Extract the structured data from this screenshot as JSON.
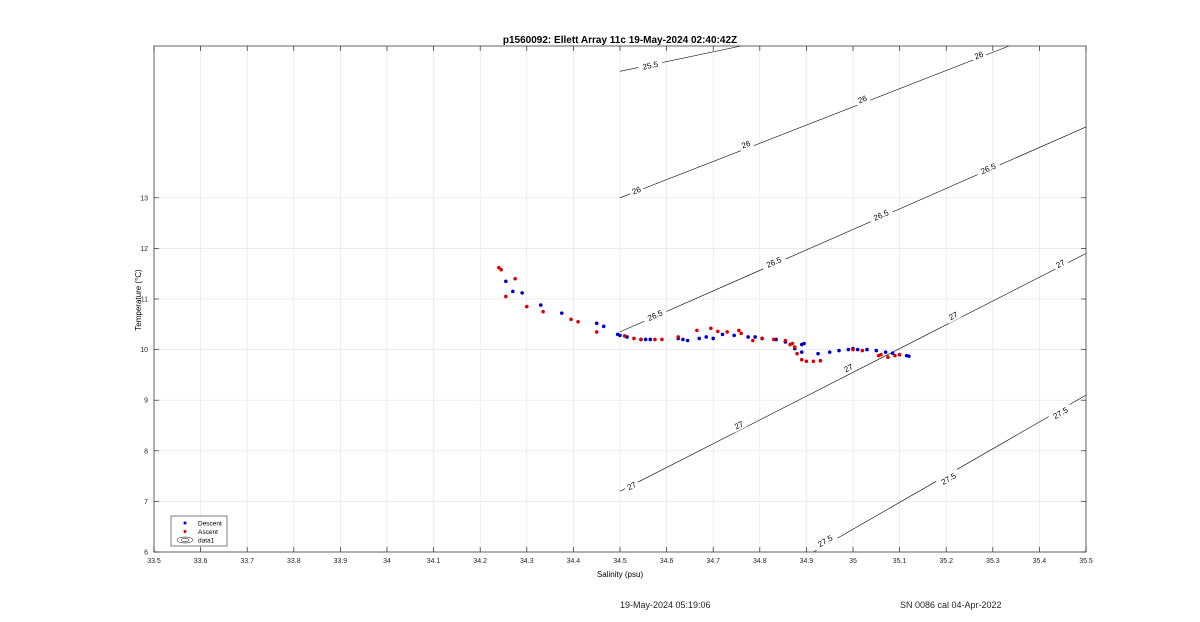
{
  "chart_data": {
    "type": "scatter",
    "title": "p1560092: Ellett Array 11c 19-May-2024 02:40:42Z",
    "xlabel": "Salinity (psu)",
    "ylabel": "Temperature (°C)",
    "xlim": [
      33.5,
      35.5
    ],
    "ylim": [
      6,
      16
    ],
    "xticks": [
      33.5,
      33.6,
      33.7,
      33.8,
      33.9,
      34,
      34.1,
      34.2,
      34.3,
      34.4,
      34.5,
      34.6,
      34.7,
      34.8,
      34.9,
      35,
      35.1,
      35.2,
      35.3,
      35.4,
      35.5
    ],
    "yticks": [
      6,
      7,
      8,
      9,
      10,
      11,
      12,
      13
    ],
    "grid": true,
    "legend_position": "bottom-left",
    "colors": {
      "descent": "#0000cc",
      "ascent": "#dd0000",
      "contour": "#000000",
      "grid": "#e6e6e6"
    },
    "series": [
      {
        "name": "Descent",
        "marker": "dot",
        "points": [
          [
            34.255,
            11.35
          ],
          [
            34.27,
            11.15
          ],
          [
            34.29,
            11.12
          ],
          [
            34.33,
            10.88
          ],
          [
            34.375,
            10.72
          ],
          [
            34.45,
            10.52
          ],
          [
            34.465,
            10.46
          ],
          [
            34.495,
            10.3
          ],
          [
            34.5,
            10.28
          ],
          [
            34.515,
            10.25
          ],
          [
            34.545,
            10.2
          ],
          [
            34.555,
            10.2
          ],
          [
            34.565,
            10.2
          ],
          [
            34.625,
            10.22
          ],
          [
            34.635,
            10.2
          ],
          [
            34.645,
            10.18
          ],
          [
            34.67,
            10.22
          ],
          [
            34.685,
            10.25
          ],
          [
            34.7,
            10.22
          ],
          [
            34.72,
            10.3
          ],
          [
            34.745,
            10.28
          ],
          [
            34.775,
            10.25
          ],
          [
            34.79,
            10.25
          ],
          [
            34.805,
            10.22
          ],
          [
            34.835,
            10.2
          ],
          [
            34.855,
            10.15
          ],
          [
            34.875,
            10.02
          ],
          [
            34.89,
            9.95
          ],
          [
            34.89,
            10.1
          ],
          [
            34.895,
            10.12
          ],
          [
            34.925,
            9.92
          ],
          [
            34.95,
            9.95
          ],
          [
            34.97,
            9.98
          ],
          [
            34.99,
            10.0
          ],
          [
            35.0,
            10.02
          ],
          [
            35.01,
            10.0
          ],
          [
            35.03,
            10.0
          ],
          [
            35.05,
            9.98
          ],
          [
            35.07,
            9.95
          ],
          [
            35.085,
            9.93
          ],
          [
            35.1,
            9.9
          ],
          [
            35.115,
            9.88
          ],
          [
            35.12,
            9.87
          ]
        ]
      },
      {
        "name": "Ascent",
        "marker": "dot",
        "points": [
          [
            34.24,
            11.62
          ],
          [
            34.245,
            11.58
          ],
          [
            34.275,
            11.4
          ],
          [
            34.255,
            11.05
          ],
          [
            34.3,
            10.85
          ],
          [
            34.335,
            10.75
          ],
          [
            34.395,
            10.6
          ],
          [
            34.41,
            10.55
          ],
          [
            34.45,
            10.35
          ],
          [
            34.51,
            10.27
          ],
          [
            34.53,
            10.22
          ],
          [
            34.545,
            10.2
          ],
          [
            34.575,
            10.2
          ],
          [
            34.59,
            10.2
          ],
          [
            34.625,
            10.25
          ],
          [
            34.665,
            10.38
          ],
          [
            34.695,
            10.42
          ],
          [
            34.71,
            10.36
          ],
          [
            34.73,
            10.35
          ],
          [
            34.755,
            10.38
          ],
          [
            34.76,
            10.32
          ],
          [
            34.785,
            10.18
          ],
          [
            34.805,
            10.22
          ],
          [
            34.83,
            10.2
          ],
          [
            34.855,
            10.18
          ],
          [
            34.865,
            10.1
          ],
          [
            34.87,
            10.12
          ],
          [
            34.875,
            10.05
          ],
          [
            34.88,
            9.92
          ],
          [
            34.89,
            9.8
          ],
          [
            34.9,
            9.77
          ],
          [
            34.915,
            9.77
          ],
          [
            34.93,
            9.78
          ],
          [
            35.0,
            10.0
          ],
          [
            35.02,
            9.98
          ],
          [
            35.055,
            9.88
          ],
          [
            35.06,
            9.9
          ],
          [
            35.075,
            9.85
          ],
          [
            35.09,
            9.88
          ],
          [
            35.1,
            9.9
          ]
        ]
      }
    ],
    "contours": [
      {
        "level": "25.5",
        "line": [
          [
            34.5,
            15.5
          ],
          [
            34.76,
            16
          ]
        ],
        "labels": [
          [
            34.565,
            15.62
          ]
        ]
      },
      {
        "level": "26",
        "line": [
          [
            34.5,
            13.0
          ],
          [
            35.335,
            16
          ]
        ],
        "labels": [
          [
            34.535,
            13.15
          ],
          [
            34.77,
            14.06
          ],
          [
            35.02,
            14.95
          ],
          [
            35.27,
            15.82
          ]
        ]
      },
      {
        "level": "26.5",
        "line": [
          [
            34.5,
            10.35
          ],
          [
            35.5,
            14.4
          ]
        ],
        "labels": [
          [
            34.575,
            10.68
          ],
          [
            34.83,
            11.73
          ],
          [
            35.06,
            12.66
          ],
          [
            35.29,
            13.58
          ]
        ]
      },
      {
        "level": "27",
        "line": [
          [
            34.5,
            7.2
          ],
          [
            35.5,
            11.9
          ]
        ],
        "labels": [
          [
            34.525,
            7.31
          ],
          [
            34.755,
            8.51
          ],
          [
            34.99,
            9.64
          ],
          [
            35.215,
            10.67
          ],
          [
            35.445,
            11.7
          ]
        ]
      },
      {
        "level": "27.5",
        "line": [
          [
            34.915,
            6.0
          ],
          [
            35.5,
            9.1
          ]
        ],
        "labels": [
          [
            34.94,
            6.22
          ],
          [
            35.205,
            7.45
          ],
          [
            35.445,
            8.75
          ]
        ]
      }
    ],
    "legend": [
      {
        "label": "Descent",
        "series": "Descent"
      },
      {
        "label": "Ascent",
        "series": "Ascent"
      },
      {
        "label": "data1",
        "series": "contour"
      }
    ]
  },
  "footer": {
    "date": "19-May-2024 05:19:06",
    "calibration": "SN 0086 cal 04-Apr-2022"
  }
}
